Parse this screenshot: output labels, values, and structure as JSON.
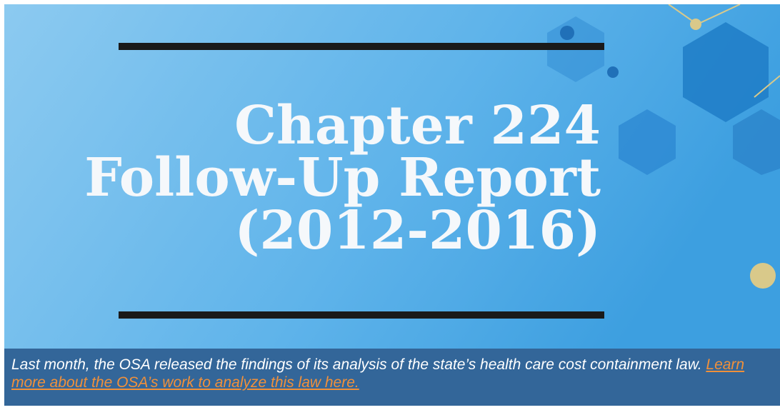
{
  "banner": {
    "title_lines": [
      "Chapter 224",
      "Follow-Up Report",
      "(2012-2016)"
    ]
  },
  "caption": {
    "text": "Last month, the OSA released the findings of its analysis of the state’s health care cost containment law.",
    "link": "Learn more about the OSA’s work to analyze this law here."
  }
}
